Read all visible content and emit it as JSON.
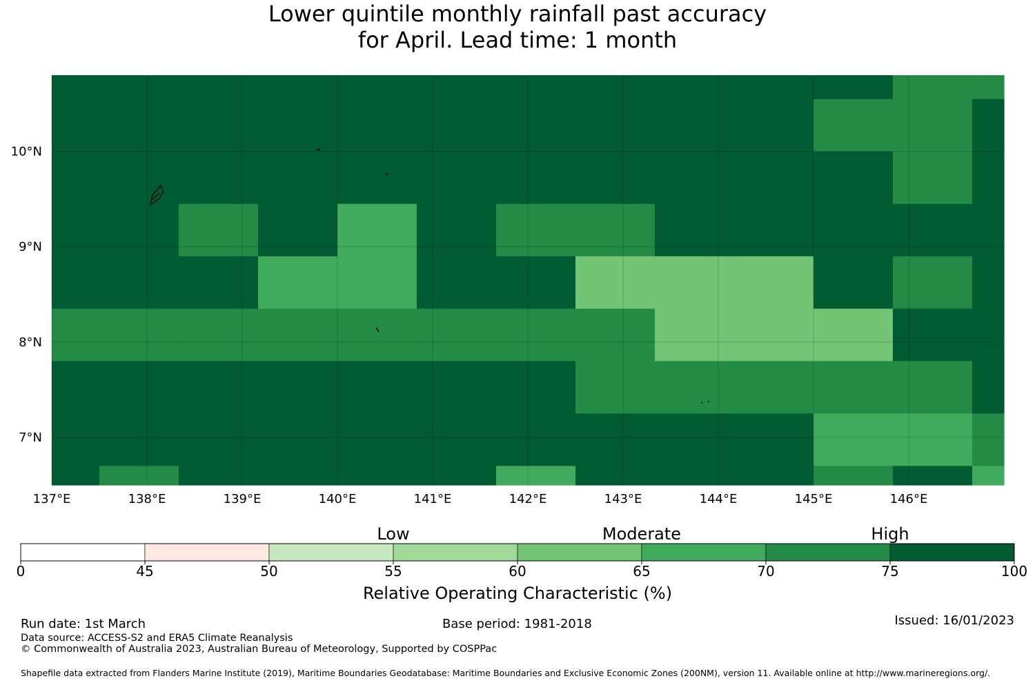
{
  "title_line1": "Lower quintile monthly rainfall past accuracy",
  "title_line2": "for April. Lead time: 1 month",
  "map": {
    "lon_ticks": [
      "137°E",
      "138°E",
      "139°E",
      "140°E",
      "141°E",
      "142°E",
      "143°E",
      "144°E",
      "145°E",
      "146°E"
    ],
    "lat_ticks": [
      "10°N",
      "9°N",
      "8°N",
      "7°N"
    ],
    "extent": {
      "lon_min": 137.0,
      "lon_max": 147.0,
      "lat_min": 6.5,
      "lat_max": 10.8
    },
    "grid": {
      "lon_edges": [
        137.0,
        137.5,
        138.333,
        139.167,
        140.0,
        140.833,
        141.667,
        142.5,
        143.333,
        144.167,
        145.0,
        145.833,
        146.667,
        147.0
      ],
      "lat_edges": [
        10.8,
        10.55,
        10.0,
        9.45,
        8.9,
        8.35,
        7.8,
        7.25,
        6.7,
        6.5
      ],
      "classes": [
        [
          7,
          7,
          7,
          7,
          7,
          7,
          7,
          7,
          7,
          7,
          7,
          6,
          6
        ],
        [
          7,
          7,
          7,
          7,
          7,
          7,
          7,
          7,
          7,
          7,
          6,
          6,
          7
        ],
        [
          7,
          7,
          7,
          7,
          7,
          7,
          7,
          7,
          7,
          7,
          7,
          6,
          7
        ],
        [
          7,
          7,
          6,
          7,
          5,
          7,
          6,
          6,
          7,
          7,
          7,
          7,
          7
        ],
        [
          7,
          7,
          7,
          5,
          5,
          7,
          7,
          4,
          4,
          4,
          7,
          6,
          7
        ],
        [
          6,
          6,
          6,
          6,
          6,
          6,
          6,
          6,
          4,
          4,
          4,
          7,
          7
        ],
        [
          7,
          7,
          7,
          7,
          7,
          7,
          7,
          6,
          6,
          6,
          6,
          6,
          7
        ],
        [
          7,
          7,
          7,
          7,
          7,
          7,
          7,
          7,
          7,
          7,
          5,
          5,
          6
        ],
        [
          7,
          6,
          7,
          7,
          7,
          7,
          5,
          7,
          7,
          7,
          6,
          7,
          5
        ]
      ]
    },
    "islands": [
      {
        "name": "island-a",
        "lon": 138.1,
        "lat": 9.55
      },
      {
        "name": "island-b",
        "lon": 139.8,
        "lat": 10.02
      },
      {
        "name": "island-c",
        "lon": 140.52,
        "lat": 9.76
      },
      {
        "name": "island-d",
        "lon": 140.42,
        "lat": 8.13
      },
      {
        "name": "island-e",
        "lon": 143.85,
        "lat": 7.36
      }
    ]
  },
  "colorbar": {
    "boundaries": [
      "0",
      "45",
      "50",
      "55",
      "60",
      "65",
      "70",
      "75",
      "100"
    ],
    "colors": [
      "#ffffff",
      "#fee8e2",
      "#c7e9c0",
      "#a1d99b",
      "#74c476",
      "#41ab5d",
      "#238b45",
      "#005a32"
    ],
    "category_labels": [
      "Low",
      "Moderate",
      "High"
    ],
    "axis_label": "Relative Operating Characteristic (%)"
  },
  "footer": {
    "run_date": "Run date: 1st March",
    "base_period": "Base period: 1981-2018",
    "issued": "Issued: 16/01/2023",
    "data_source": "Data source: ACCESS-S2 and ERA5 Climate Reanalysis",
    "copyright": "© Commonwealth of Australia 2023, Australian Bureau of Meteorology, Supported by COSPPac",
    "shapefile": "Shapefile data extracted from Flanders Marine Institute (2019), Maritime Boundaries Geodatabase: Maritime Boundaries and Exclusive Economic Zones (200NM), version 11. Available online at http://www.marineregions.org/."
  }
}
